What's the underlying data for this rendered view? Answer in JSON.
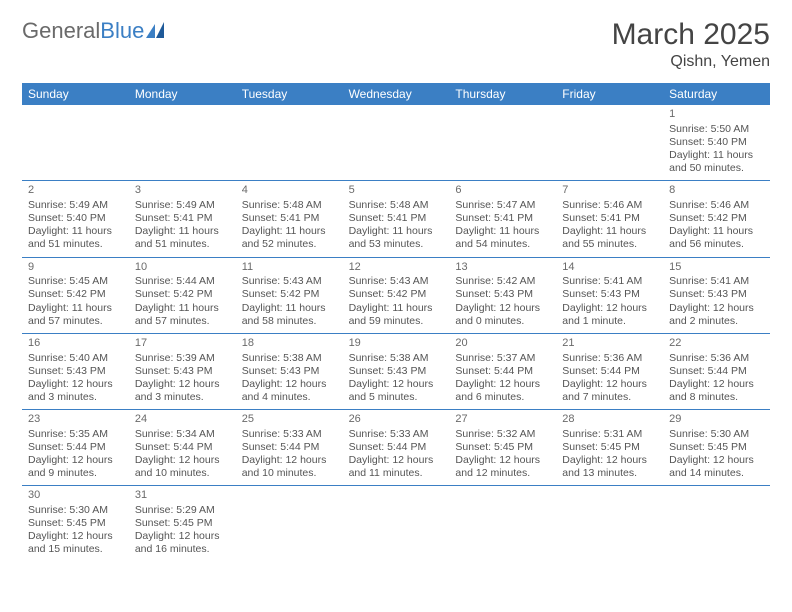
{
  "logo": {
    "general": "General",
    "blue": "Blue"
  },
  "title": "March 2025",
  "subtitle": "Qishn, Yemen",
  "colors": {
    "header_bg": "#3b7fc4",
    "header_text": "#ffffff",
    "text": "#555555"
  },
  "day_names": [
    "Sunday",
    "Monday",
    "Tuesday",
    "Wednesday",
    "Thursday",
    "Friday",
    "Saturday"
  ],
  "weeks": [
    [
      null,
      null,
      null,
      null,
      null,
      null,
      {
        "n": "1",
        "sunrise": "Sunrise: 5:50 AM",
        "sunset": "Sunset: 5:40 PM",
        "daylight": "Daylight: 11 hours and 50 minutes."
      }
    ],
    [
      {
        "n": "2",
        "sunrise": "Sunrise: 5:49 AM",
        "sunset": "Sunset: 5:40 PM",
        "daylight": "Daylight: 11 hours and 51 minutes."
      },
      {
        "n": "3",
        "sunrise": "Sunrise: 5:49 AM",
        "sunset": "Sunset: 5:41 PM",
        "daylight": "Daylight: 11 hours and 51 minutes."
      },
      {
        "n": "4",
        "sunrise": "Sunrise: 5:48 AM",
        "sunset": "Sunset: 5:41 PM",
        "daylight": "Daylight: 11 hours and 52 minutes."
      },
      {
        "n": "5",
        "sunrise": "Sunrise: 5:48 AM",
        "sunset": "Sunset: 5:41 PM",
        "daylight": "Daylight: 11 hours and 53 minutes."
      },
      {
        "n": "6",
        "sunrise": "Sunrise: 5:47 AM",
        "sunset": "Sunset: 5:41 PM",
        "daylight": "Daylight: 11 hours and 54 minutes."
      },
      {
        "n": "7",
        "sunrise": "Sunrise: 5:46 AM",
        "sunset": "Sunset: 5:41 PM",
        "daylight": "Daylight: 11 hours and 55 minutes."
      },
      {
        "n": "8",
        "sunrise": "Sunrise: 5:46 AM",
        "sunset": "Sunset: 5:42 PM",
        "daylight": "Daylight: 11 hours and 56 minutes."
      }
    ],
    [
      {
        "n": "9",
        "sunrise": "Sunrise: 5:45 AM",
        "sunset": "Sunset: 5:42 PM",
        "daylight": "Daylight: 11 hours and 57 minutes."
      },
      {
        "n": "10",
        "sunrise": "Sunrise: 5:44 AM",
        "sunset": "Sunset: 5:42 PM",
        "daylight": "Daylight: 11 hours and 57 minutes."
      },
      {
        "n": "11",
        "sunrise": "Sunrise: 5:43 AM",
        "sunset": "Sunset: 5:42 PM",
        "daylight": "Daylight: 11 hours and 58 minutes."
      },
      {
        "n": "12",
        "sunrise": "Sunrise: 5:43 AM",
        "sunset": "Sunset: 5:42 PM",
        "daylight": "Daylight: 11 hours and 59 minutes."
      },
      {
        "n": "13",
        "sunrise": "Sunrise: 5:42 AM",
        "sunset": "Sunset: 5:43 PM",
        "daylight": "Daylight: 12 hours and 0 minutes."
      },
      {
        "n": "14",
        "sunrise": "Sunrise: 5:41 AM",
        "sunset": "Sunset: 5:43 PM",
        "daylight": "Daylight: 12 hours and 1 minute."
      },
      {
        "n": "15",
        "sunrise": "Sunrise: 5:41 AM",
        "sunset": "Sunset: 5:43 PM",
        "daylight": "Daylight: 12 hours and 2 minutes."
      }
    ],
    [
      {
        "n": "16",
        "sunrise": "Sunrise: 5:40 AM",
        "sunset": "Sunset: 5:43 PM",
        "daylight": "Daylight: 12 hours and 3 minutes."
      },
      {
        "n": "17",
        "sunrise": "Sunrise: 5:39 AM",
        "sunset": "Sunset: 5:43 PM",
        "daylight": "Daylight: 12 hours and 3 minutes."
      },
      {
        "n": "18",
        "sunrise": "Sunrise: 5:38 AM",
        "sunset": "Sunset: 5:43 PM",
        "daylight": "Daylight: 12 hours and 4 minutes."
      },
      {
        "n": "19",
        "sunrise": "Sunrise: 5:38 AM",
        "sunset": "Sunset: 5:43 PM",
        "daylight": "Daylight: 12 hours and 5 minutes."
      },
      {
        "n": "20",
        "sunrise": "Sunrise: 5:37 AM",
        "sunset": "Sunset: 5:44 PM",
        "daylight": "Daylight: 12 hours and 6 minutes."
      },
      {
        "n": "21",
        "sunrise": "Sunrise: 5:36 AM",
        "sunset": "Sunset: 5:44 PM",
        "daylight": "Daylight: 12 hours and 7 minutes."
      },
      {
        "n": "22",
        "sunrise": "Sunrise: 5:36 AM",
        "sunset": "Sunset: 5:44 PM",
        "daylight": "Daylight: 12 hours and 8 minutes."
      }
    ],
    [
      {
        "n": "23",
        "sunrise": "Sunrise: 5:35 AM",
        "sunset": "Sunset: 5:44 PM",
        "daylight": "Daylight: 12 hours and 9 minutes."
      },
      {
        "n": "24",
        "sunrise": "Sunrise: 5:34 AM",
        "sunset": "Sunset: 5:44 PM",
        "daylight": "Daylight: 12 hours and 10 minutes."
      },
      {
        "n": "25",
        "sunrise": "Sunrise: 5:33 AM",
        "sunset": "Sunset: 5:44 PM",
        "daylight": "Daylight: 12 hours and 10 minutes."
      },
      {
        "n": "26",
        "sunrise": "Sunrise: 5:33 AM",
        "sunset": "Sunset: 5:44 PM",
        "daylight": "Daylight: 12 hours and 11 minutes."
      },
      {
        "n": "27",
        "sunrise": "Sunrise: 5:32 AM",
        "sunset": "Sunset: 5:45 PM",
        "daylight": "Daylight: 12 hours and 12 minutes."
      },
      {
        "n": "28",
        "sunrise": "Sunrise: 5:31 AM",
        "sunset": "Sunset: 5:45 PM",
        "daylight": "Daylight: 12 hours and 13 minutes."
      },
      {
        "n": "29",
        "sunrise": "Sunrise: 5:30 AM",
        "sunset": "Sunset: 5:45 PM",
        "daylight": "Daylight: 12 hours and 14 minutes."
      }
    ],
    [
      {
        "n": "30",
        "sunrise": "Sunrise: 5:30 AM",
        "sunset": "Sunset: 5:45 PM",
        "daylight": "Daylight: 12 hours and 15 minutes."
      },
      {
        "n": "31",
        "sunrise": "Sunrise: 5:29 AM",
        "sunset": "Sunset: 5:45 PM",
        "daylight": "Daylight: 12 hours and 16 minutes."
      },
      null,
      null,
      null,
      null,
      null
    ]
  ]
}
